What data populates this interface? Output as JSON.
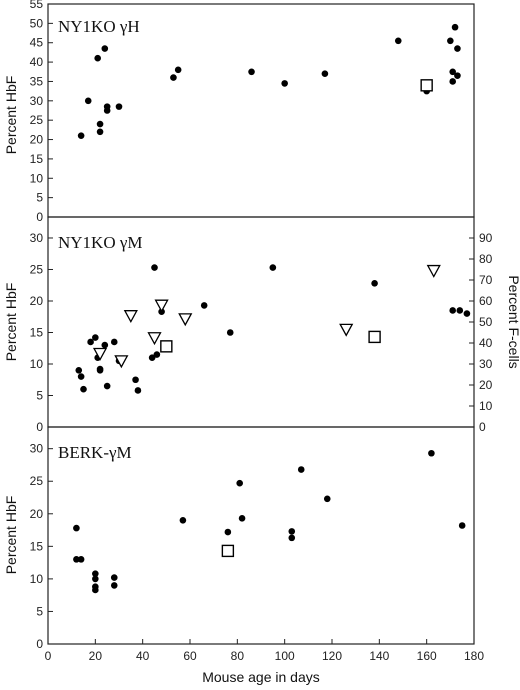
{
  "chart_data": [
    {
      "type": "scatter",
      "title": "NY1KO γH",
      "ylabel": "Percent HbF",
      "xlim": [
        0,
        180
      ],
      "ylim": [
        0,
        55
      ],
      "yticks": [
        0,
        5,
        10,
        15,
        20,
        25,
        30,
        35,
        40,
        45,
        50,
        55
      ],
      "grid": false,
      "series": [
        {
          "marker": "filled-circle",
          "points": [
            [
              14,
              21
            ],
            [
              17,
              30
            ],
            [
              21,
              41
            ],
            [
              22,
              22
            ],
            [
              22,
              24
            ],
            [
              24,
              43.5
            ],
            [
              25,
              27.5
            ],
            [
              25,
              28.5
            ],
            [
              30,
              28.5
            ],
            [
              53,
              36
            ],
            [
              55,
              38
            ],
            [
              86,
              37.5
            ],
            [
              100,
              34.5
            ],
            [
              117,
              37
            ],
            [
              148,
              45.5
            ],
            [
              160,
              32.5
            ],
            [
              170,
              45.5
            ],
            [
              171,
              35
            ],
            [
              171,
              37.5
            ],
            [
              172,
              49
            ],
            [
              173,
              43.5
            ],
            [
              173,
              36.5
            ]
          ]
        },
        {
          "marker": "open-square",
          "points": [
            [
              160,
              34
            ]
          ]
        }
      ]
    },
    {
      "type": "scatter",
      "title": "NY1KO γM",
      "ylabel": "Percent HbF",
      "y2label": "Percent F-cells",
      "xlim": [
        0,
        180
      ],
      "ylim": [
        0,
        33.33
      ],
      "yticks": [
        0,
        5,
        10,
        15,
        20,
        25,
        30
      ],
      "y2lim": [
        0,
        100
      ],
      "y2ticks": [
        0,
        10,
        20,
        30,
        40,
        50,
        60,
        70,
        80,
        90
      ],
      "grid": false,
      "series": [
        {
          "marker": "filled-circle",
          "axis": "left",
          "points": [
            [
              13,
              9
            ],
            [
              14,
              8
            ],
            [
              15,
              6
            ],
            [
              18,
              13.5
            ],
            [
              20,
              14.2
            ],
            [
              21,
              11
            ],
            [
              22,
              9
            ],
            [
              22,
              9.2
            ],
            [
              24,
              13
            ],
            [
              25,
              6.5
            ],
            [
              28,
              13.5
            ],
            [
              30,
              10.5
            ],
            [
              37,
              7.5
            ],
            [
              38,
              5.8
            ],
            [
              44,
              11
            ],
            [
              45,
              25.3
            ],
            [
              46,
              11.5
            ],
            [
              48,
              18.3
            ],
            [
              66,
              19.3
            ],
            [
              77,
              15
            ],
            [
              95,
              25.3
            ],
            [
              138,
              22.8
            ],
            [
              171,
              18.5
            ],
            [
              174,
              18.5
            ],
            [
              177,
              18
            ]
          ]
        },
        {
          "marker": "open-triangle-down",
          "axis": "right",
          "points": [
            [
              22,
              35
            ],
            [
              31,
              31.5
            ],
            [
              35,
              53
            ],
            [
              45,
              42.5
            ],
            [
              48,
              58
            ],
            [
              58,
              51.5
            ],
            [
              126,
              46.5
            ],
            [
              163,
              74.5
            ]
          ]
        },
        {
          "marker": "open-square",
          "axis": "left",
          "points": [
            [
              50,
              12.8
            ],
            [
              138,
              14.3
            ]
          ]
        }
      ]
    },
    {
      "type": "scatter",
      "title": "BERK-γM",
      "ylabel": "Percent HbF",
      "xlabel": "Mouse age in days",
      "xlim": [
        0,
        180
      ],
      "xticks": [
        0,
        20,
        40,
        60,
        80,
        100,
        120,
        140,
        160,
        180
      ],
      "ylim": [
        0,
        33.33
      ],
      "yticks": [
        0,
        5,
        10,
        15,
        20,
        25,
        30
      ],
      "grid": false,
      "series": [
        {
          "marker": "filled-circle",
          "points": [
            [
              12,
              17.8
            ],
            [
              12,
              13
            ],
            [
              14,
              13
            ],
            [
              20,
              10
            ],
            [
              20,
              10.8
            ],
            [
              20,
              8.8
            ],
            [
              20,
              8.3
            ],
            [
              28,
              9
            ],
            [
              28,
              10.2
            ],
            [
              57,
              19
            ],
            [
              76,
              17.2
            ],
            [
              81,
              24.7
            ],
            [
              82,
              19.3
            ],
            [
              103,
              17.3
            ],
            [
              103,
              16.3
            ],
            [
              107,
              26.8
            ],
            [
              118,
              22.3
            ],
            [
              162,
              29.3
            ],
            [
              175,
              18.2
            ]
          ]
        },
        {
          "marker": "open-square",
          "points": [
            [
              76,
              14.3
            ]
          ]
        }
      ]
    }
  ]
}
